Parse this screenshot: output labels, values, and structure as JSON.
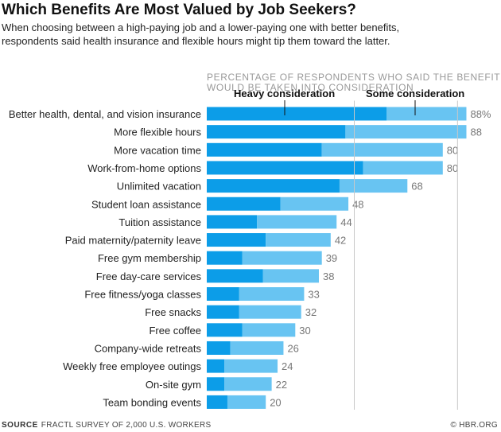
{
  "header": {
    "title": "Which Benefits Are Most Valued by Job Seekers?",
    "subtitle_line1": "When choosing between a high-paying job and a lower-paying one with better benefits,",
    "subtitle_line2": "respondents said health insurance and flexible hours might tip them toward the latter."
  },
  "chart_data": {
    "type": "bar",
    "orientation": "horizontal",
    "stacked": true,
    "title_line1": "PERCENTAGE OF RESPONDENTS WHO SAID THE BENEFIT",
    "title_line2": "WOULD BE TAKEN INTO CONSIDERATION",
    "xlim": [
      0,
      100
    ],
    "categories": [
      "Better health, dental, and vision insurance",
      "More flexible hours",
      "More vacation time",
      "Work-from-home options",
      "Unlimited vacation",
      "Student loan assistance",
      "Tuition assistance",
      "Paid maternity/paternity leave",
      "Free gym membership",
      "Free day-care services",
      "Free fitness/yoga classes",
      "Free snacks",
      "Free coffee",
      "Company-wide retreats",
      "Weekly free employee outings",
      "On-site gym",
      "Team bonding events"
    ],
    "series": [
      {
        "name": "Heavy consideration",
        "values": [
          61,
          47,
          39,
          53,
          45,
          25,
          17,
          20,
          12,
          19,
          11,
          11,
          12,
          8,
          6,
          6,
          7
        ]
      },
      {
        "name": "Some consideration",
        "values": [
          27,
          41,
          41,
          27,
          23,
          23,
          27,
          22,
          27,
          19,
          22,
          21,
          18,
          18,
          18,
          16,
          13
        ]
      }
    ],
    "total_labels": [
      "88%",
      "88",
      "80",
      "80",
      "68",
      "48",
      "44",
      "42",
      "39",
      "38",
      "33",
      "32",
      "30",
      "26",
      "24",
      "22",
      "20"
    ],
    "gridlines": [
      50,
      85
    ],
    "colors": {
      "heavy": "#0c9de8",
      "some": "#68c4f2",
      "grid": "#c8c8c8",
      "value_label": "#777777",
      "category_label": "#222222",
      "title": "#999999"
    }
  },
  "footer": {
    "source_label": "SOURCE",
    "source_text": "FRACTL SURVEY OF 2,000 U.S. WORKERS",
    "credit": "© HBR.ORG"
  }
}
